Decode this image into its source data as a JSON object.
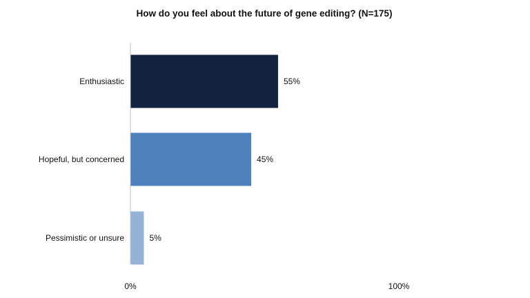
{
  "chart_data": {
    "type": "bar",
    "orientation": "horizontal",
    "title": "How do you feel about the future of gene editing? (N=175)",
    "categories": [
      "Enthusiastic",
      "Hopeful, but concerned",
      "Pessimistic or unsure"
    ],
    "values": [
      55,
      45,
      5
    ],
    "value_labels": [
      "55%",
      "45%",
      "5%"
    ],
    "colors": [
      "#13233f",
      "#4f81bd",
      "#95b3d7"
    ],
    "xlim": [
      0,
      100
    ],
    "x_ticks": [
      0,
      100
    ],
    "x_tick_labels": [
      "0%",
      "100%"
    ],
    "grid": false,
    "legend": "none"
  }
}
